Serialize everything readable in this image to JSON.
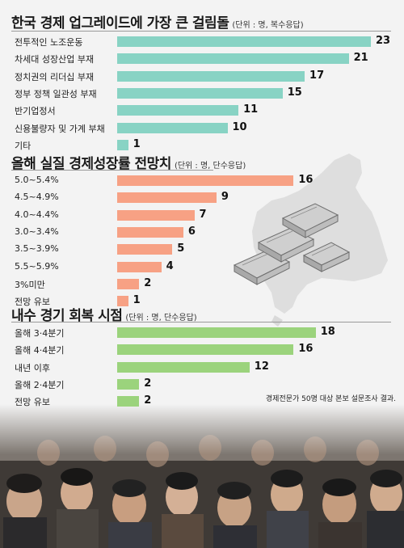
{
  "colors": {
    "teal": "#88d3c4",
    "salmon": "#f7a184",
    "green": "#9bd37c"
  },
  "sections": [
    {
      "title": "한국 경제 업그레이드에 가장 큰 걸림돌",
      "unit": "(단위 : 명, 복수응답)",
      "color": "#88d3c4",
      "rows": [
        {
          "label": "전투적인 노조운동",
          "value": 23,
          "display": "23"
        },
        {
          "label": "차세대 성장산업 부재",
          "value": 21,
          "display": "21"
        },
        {
          "label": "정치권의 리더십 부재",
          "value": 17,
          "display": "17"
        },
        {
          "label": "정부 정책 일관성 부재",
          "value": 15,
          "display": "15"
        },
        {
          "label": "반기업정서",
          "value": 11,
          "display": "11"
        },
        {
          "label": "신용불량자 및 가계 부채",
          "value": 10,
          "display": "10"
        },
        {
          "label": "기타",
          "value": 1,
          "display": "1"
        }
      ]
    },
    {
      "title": "올해 실질 경제성장률 전망치",
      "unit": "(단위 : 명, 단수응답)",
      "color": "#f7a184",
      "rows": [
        {
          "label": "5.0~5.4%",
          "value": 16,
          "display": "16"
        },
        {
          "label": "4.5~4.9%",
          "value": 9,
          "display": "9"
        },
        {
          "label": "4.0~4.4%",
          "value": 7,
          "display": "7"
        },
        {
          "label": "3.0~3.4%",
          "value": 6,
          "display": "6"
        },
        {
          "label": "3.5~3.9%",
          "value": 5,
          "display": "5"
        },
        {
          "label": "5.5~5.9%",
          "value": 4,
          "display": "4"
        },
        {
          "label": "3%미만",
          "value": 2,
          "display": "2"
        },
        {
          "label": "전망 유보",
          "value": 1,
          "display": "1"
        }
      ]
    },
    {
      "title": "내수 경기 회복 시점",
      "unit": "(단위 : 명, 단수응답)",
      "color": "#9bd37c",
      "rows": [
        {
          "label": "올해 3·4분기",
          "value": 18,
          "display": "18"
        },
        {
          "label": "올해 4·4분기",
          "value": 16,
          "display": "16"
        },
        {
          "label": "내년 이후",
          "value": 12,
          "display": "12"
        },
        {
          "label": "올해 2·4분기",
          "value": 2,
          "display": "2"
        },
        {
          "label": "전망 유보",
          "value": 2,
          "display": "2"
        }
      ]
    }
  ],
  "footnote": "경제전문가 50명 대상 본보 설문조사 결과.",
  "chart_data": [
    {
      "type": "bar",
      "title": "한국 경제 업그레이드에 가장 큰 걸림돌",
      "subtitle": "(단위 : 명, 복수응답)",
      "categories": [
        "전투적인 노조운동",
        "차세대 성장산업 부재",
        "정치권의 리더십 부재",
        "정부 정책 일관성 부재",
        "반기업정서",
        "신용불량자 및 가계 부채",
        "기타"
      ],
      "values": [
        23,
        21,
        17,
        15,
        11,
        10,
        1
      ]
    },
    {
      "type": "bar",
      "title": "올해 실질 경제성장률 전망치",
      "subtitle": "(단위 : 명, 단수응답)",
      "categories": [
        "5.0~5.4%",
        "4.5~4.9%",
        "4.0~4.4%",
        "3.0~3.4%",
        "3.5~3.9%",
        "5.5~5.9%",
        "3%미만",
        "전망 유보"
      ],
      "values": [
        16,
        9,
        7,
        6,
        5,
        4,
        2,
        1
      ]
    },
    {
      "type": "bar",
      "title": "내수 경기 회복 시점",
      "subtitle": "(단위 : 명, 단수응답)",
      "categories": [
        "올해 3·4분기",
        "올해 4·4분기",
        "내년 이후",
        "올해 2·4분기",
        "전망 유보"
      ],
      "values": [
        18,
        16,
        12,
        2,
        2
      ]
    }
  ]
}
